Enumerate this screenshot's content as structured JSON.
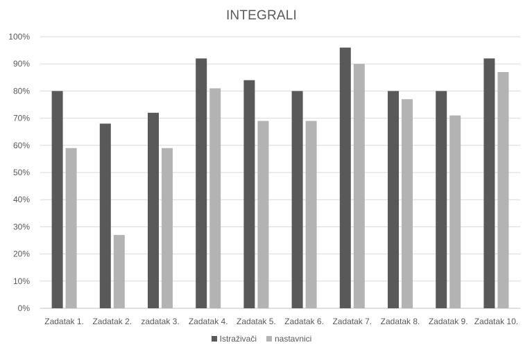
{
  "chart_data": {
    "type": "bar",
    "title": "INTEGRALI",
    "xlabel": "",
    "ylabel": "",
    "categories": [
      "Zadatak 1.",
      "Zadatak 2.",
      "zadatak 3.",
      "Zadatak 4.",
      "Zadatak 5.",
      "Zadatak 6.",
      "Zadatak 7.",
      "Zadatak 8.",
      "Zadatak 9.",
      "Zadatak 10."
    ],
    "series": [
      {
        "name": "Istraživači",
        "color": "#595959",
        "values": [
          80,
          68,
          72,
          92,
          84,
          80,
          96,
          80,
          80,
          92
        ]
      },
      {
        "name": "nastavnici",
        "color": "#b3b3b3",
        "values": [
          59,
          27,
          59,
          81,
          69,
          69,
          90,
          77,
          71,
          87
        ]
      }
    ],
    "ylim": [
      0,
      100
    ],
    "yticks": [
      "0%",
      "10%",
      "20%",
      "30%",
      "40%",
      "50%",
      "60%",
      "70%",
      "80%",
      "90%",
      "100%"
    ],
    "grid": true,
    "legend_position": "bottom"
  }
}
